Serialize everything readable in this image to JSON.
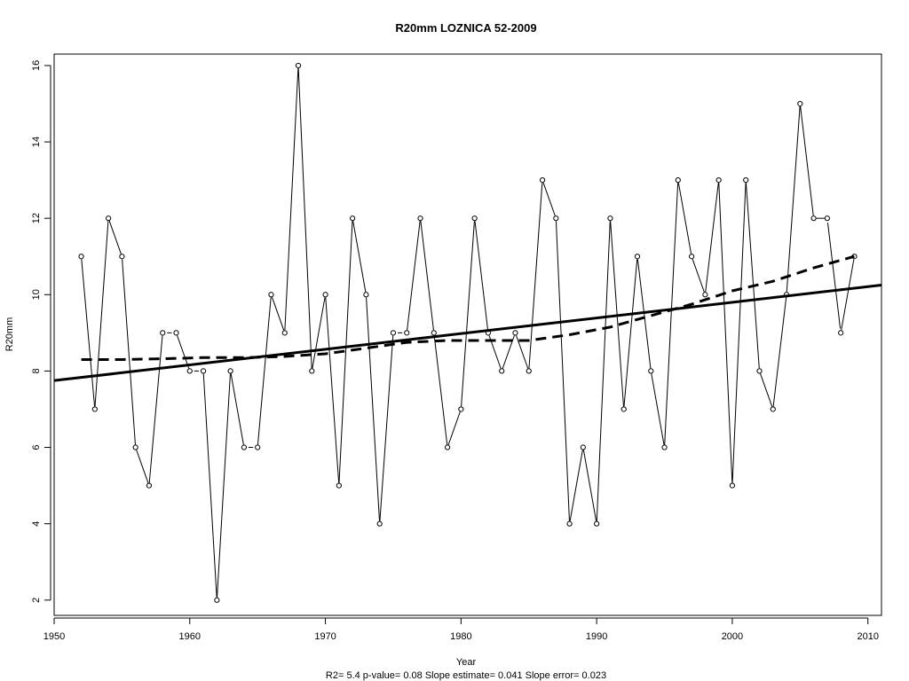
{
  "chart_data": {
    "type": "line",
    "title": "R20mm   LOZNICA 52-2009",
    "xlabel": "Year",
    "ylabel": "R20mm",
    "subtitle": "R2= 5.4  p-value= 0.08  Slope estimate= 0.041  Slope error= 0.023",
    "xlim": [
      1950,
      2011
    ],
    "ylim": [
      1.6,
      16.3
    ],
    "xticks": [
      1950,
      1960,
      1970,
      1980,
      1990,
      2000,
      2010
    ],
    "yticks": [
      2,
      4,
      6,
      8,
      10,
      12,
      14,
      16
    ],
    "x": [
      1952,
      1953,
      1954,
      1955,
      1956,
      1957,
      1958,
      1959,
      1960,
      1961,
      1962,
      1963,
      1964,
      1965,
      1966,
      1967,
      1968,
      1969,
      1970,
      1971,
      1972,
      1973,
      1974,
      1975,
      1976,
      1977,
      1978,
      1979,
      1980,
      1981,
      1982,
      1983,
      1984,
      1985,
      1986,
      1987,
      1988,
      1989,
      1990,
      1991,
      1992,
      1993,
      1994,
      1995,
      1996,
      1997,
      1998,
      1999,
      2000,
      2001,
      2002,
      2003,
      2004,
      2005,
      2006,
      2007,
      2008,
      2009
    ],
    "series": [
      {
        "style": "solid-thin-with-circles",
        "values": [
          11,
          7,
          12,
          11,
          6,
          5,
          9,
          9,
          8,
          8,
          2,
          8,
          6,
          6,
          10,
          9,
          16,
          8,
          10,
          5,
          12,
          10,
          4,
          9,
          9,
          12,
          9,
          6,
          7,
          12,
          9,
          8,
          9,
          8,
          13,
          12,
          4,
          6,
          4,
          12,
          7,
          11,
          8,
          6,
          13,
          11,
          10,
          13,
          5,
          13,
          8,
          7,
          10,
          15,
          12,
          12,
          9,
          11
        ],
        "gaps_after_index": [
          6,
          8,
          12,
          23,
          55
        ]
      },
      {
        "style": "solid-thick-linear-trend",
        "x": [
          1950,
          2011
        ],
        "values": [
          7.75,
          10.25
        ]
      },
      {
        "style": "dashed-thick-smoothed-trend",
        "x": [
          1952,
          1955,
          1958,
          1961,
          1964,
          1967,
          1970,
          1973,
          1976,
          1979,
          1982,
          1985,
          1988,
          1991,
          1994,
          1997,
          2000,
          2003,
          2006,
          2009
        ],
        "values": [
          8.3,
          8.3,
          8.32,
          8.35,
          8.35,
          8.38,
          8.45,
          8.6,
          8.75,
          8.8,
          8.8,
          8.8,
          8.95,
          9.15,
          9.45,
          9.75,
          10.1,
          10.35,
          10.7,
          11.0
        ]
      }
    ],
    "grid": false,
    "legend": "none"
  }
}
